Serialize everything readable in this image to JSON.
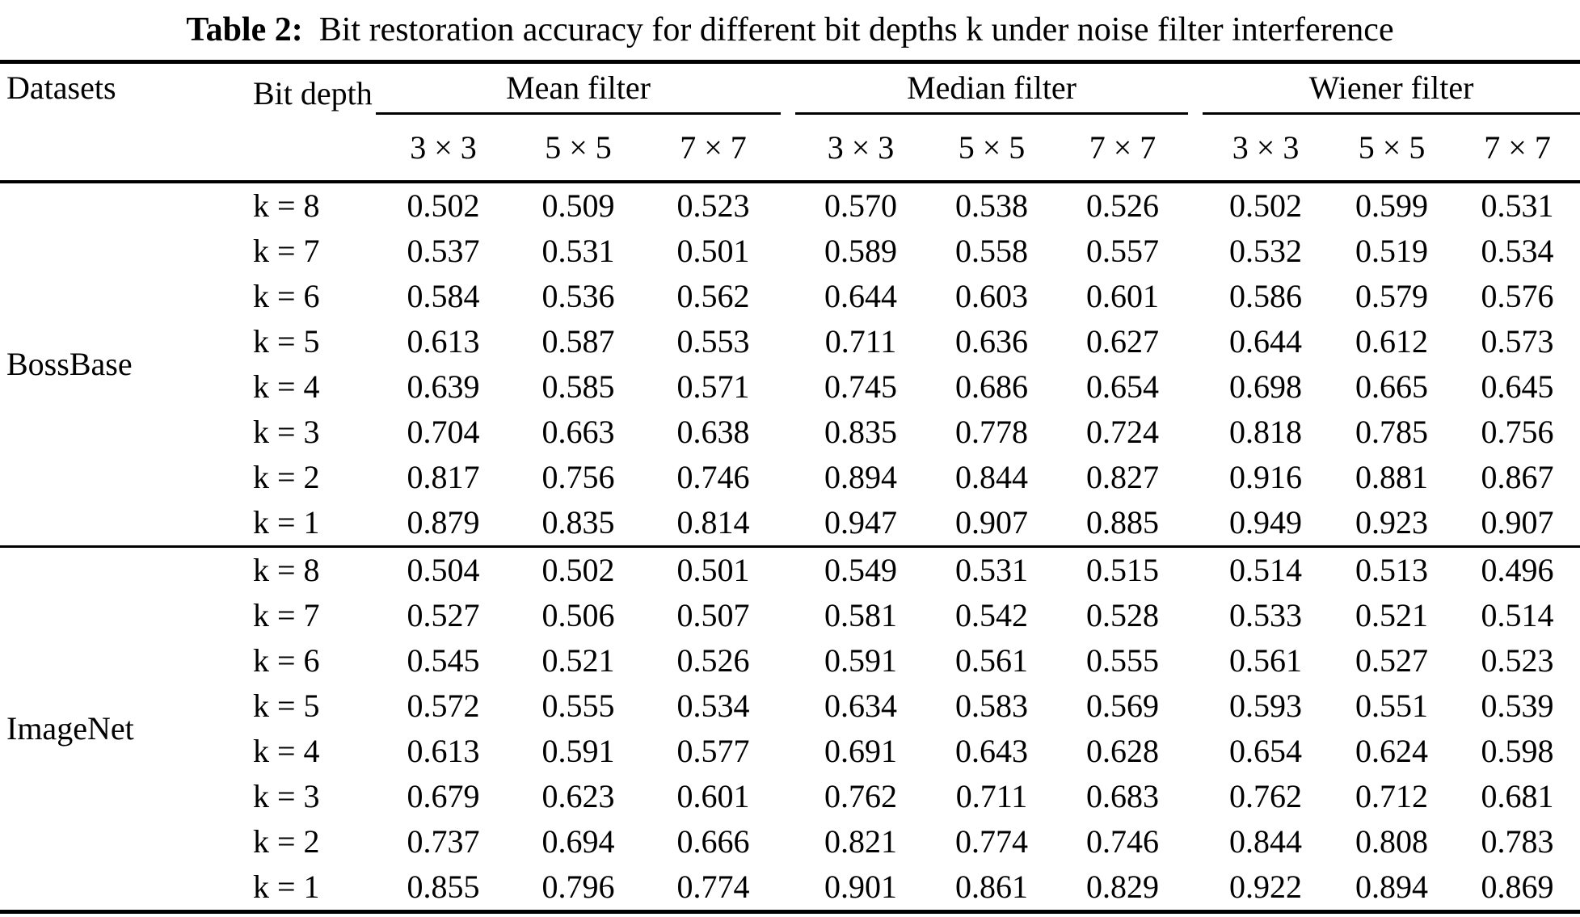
{
  "title": {
    "label": "Table 2:",
    "text": "Bit restoration accuracy for different bit depths k under noise filter interference"
  },
  "colors": {
    "text": "#000000",
    "background": "#ffffff",
    "rules": "#000000"
  },
  "header": {
    "datasets": "Datasets",
    "bit_depth": "Bit depth",
    "groups": [
      {
        "label": "Mean filter",
        "subcols": [
          "3 × 3",
          "5 × 5",
          "7 × 7"
        ]
      },
      {
        "label": "Median filter",
        "subcols": [
          "3 × 3",
          "5 × 5",
          "7 × 7"
        ]
      },
      {
        "label": "Wiener filter",
        "subcols": [
          "3 × 3",
          "5 × 5",
          "7 × 7"
        ]
      }
    ]
  },
  "sections": [
    {
      "dataset": "BossBase",
      "rows": [
        {
          "bit_depth": "k = 8",
          "values": [
            "0.502",
            "0.509",
            "0.523",
            "0.570",
            "0.538",
            "0.526",
            "0.502",
            "0.599",
            "0.531"
          ]
        },
        {
          "bit_depth": "k = 7",
          "values": [
            "0.537",
            "0.531",
            "0.501",
            "0.589",
            "0.558",
            "0.557",
            "0.532",
            "0.519",
            "0.534"
          ]
        },
        {
          "bit_depth": "k = 6",
          "values": [
            "0.584",
            "0.536",
            "0.562",
            "0.644",
            "0.603",
            "0.601",
            "0.586",
            "0.579",
            "0.576"
          ]
        },
        {
          "bit_depth": "k = 5",
          "values": [
            "0.613",
            "0.587",
            "0.553",
            "0.711",
            "0.636",
            "0.627",
            "0.644",
            "0.612",
            "0.573"
          ]
        },
        {
          "bit_depth": "k = 4",
          "values": [
            "0.639",
            "0.585",
            "0.571",
            "0.745",
            "0.686",
            "0.654",
            "0.698",
            "0.665",
            "0.645"
          ]
        },
        {
          "bit_depth": "k = 3",
          "values": [
            "0.704",
            "0.663",
            "0.638",
            "0.835",
            "0.778",
            "0.724",
            "0.818",
            "0.785",
            "0.756"
          ]
        },
        {
          "bit_depth": "k = 2",
          "values": [
            "0.817",
            "0.756",
            "0.746",
            "0.894",
            "0.844",
            "0.827",
            "0.916",
            "0.881",
            "0.867"
          ]
        },
        {
          "bit_depth": "k = 1",
          "values": [
            "0.879",
            "0.835",
            "0.814",
            "0.947",
            "0.907",
            "0.885",
            "0.949",
            "0.923",
            "0.907"
          ]
        }
      ]
    },
    {
      "dataset": "ImageNet",
      "rows": [
        {
          "bit_depth": "k = 8",
          "values": [
            "0.504",
            "0.502",
            "0.501",
            "0.549",
            "0.531",
            "0.515",
            "0.514",
            "0.513",
            "0.496"
          ]
        },
        {
          "bit_depth": "k = 7",
          "values": [
            "0.527",
            "0.506",
            "0.507",
            "0.581",
            "0.542",
            "0.528",
            "0.533",
            "0.521",
            "0.514"
          ]
        },
        {
          "bit_depth": "k = 6",
          "values": [
            "0.545",
            "0.521",
            "0.526",
            "0.591",
            "0.561",
            "0.555",
            "0.561",
            "0.527",
            "0.523"
          ]
        },
        {
          "bit_depth": "k = 5",
          "values": [
            "0.572",
            "0.555",
            "0.534",
            "0.634",
            "0.583",
            "0.569",
            "0.593",
            "0.551",
            "0.539"
          ]
        },
        {
          "bit_depth": "k = 4",
          "values": [
            "0.613",
            "0.591",
            "0.577",
            "0.691",
            "0.643",
            "0.628",
            "0.654",
            "0.624",
            "0.598"
          ]
        },
        {
          "bit_depth": "k = 3",
          "values": [
            "0.679",
            "0.623",
            "0.601",
            "0.762",
            "0.711",
            "0.683",
            "0.762",
            "0.712",
            "0.681"
          ]
        },
        {
          "bit_depth": "k = 2",
          "values": [
            "0.737",
            "0.694",
            "0.666",
            "0.821",
            "0.774",
            "0.746",
            "0.844",
            "0.808",
            "0.783"
          ]
        },
        {
          "bit_depth": "k = 1",
          "values": [
            "0.855",
            "0.796",
            "0.774",
            "0.901",
            "0.861",
            "0.829",
            "0.922",
            "0.894",
            "0.869"
          ]
        }
      ]
    }
  ]
}
